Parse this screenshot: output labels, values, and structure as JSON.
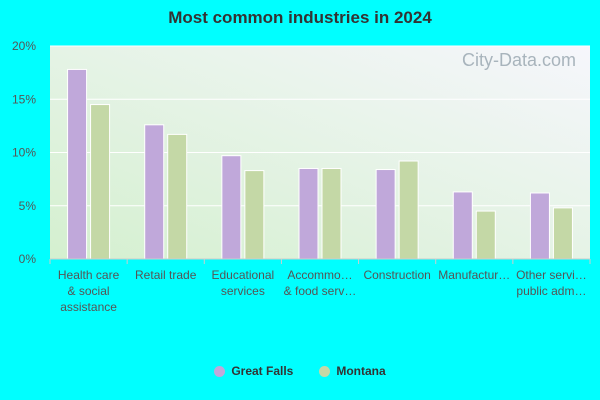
{
  "chart_data": {
    "type": "bar",
    "title": "Most common industries in 2024",
    "categories": [
      [
        "Health care",
        "& social",
        "assistance"
      ],
      [
        "Retail trade"
      ],
      [
        "Educational",
        "services"
      ],
      [
        "Accommo…",
        "& food serv…"
      ],
      [
        "Construction"
      ],
      [
        "Manufactur…"
      ],
      [
        "Other servi…",
        "public adm…"
      ]
    ],
    "series": [
      {
        "name": "Great Falls",
        "values": [
          17.8,
          12.6,
          9.7,
          8.5,
          8.4,
          6.3,
          6.2
        ],
        "color": "#c0a8da"
      },
      {
        "name": "Montana",
        "values": [
          14.5,
          11.7,
          8.3,
          8.5,
          9.2,
          4.5,
          4.8
        ],
        "color": "#c4d8a6"
      }
    ],
    "ylim": [
      0,
      20
    ],
    "yticks": [
      "0%",
      "5%",
      "10%",
      "15%",
      "20%"
    ],
    "grid": true,
    "legend_position": "bottom"
  },
  "watermark": "City-Data.com",
  "colors": {
    "background": "#00ffff",
    "plot_top": "#f4f4fb",
    "plot_bottom": "#d6f2d2"
  }
}
